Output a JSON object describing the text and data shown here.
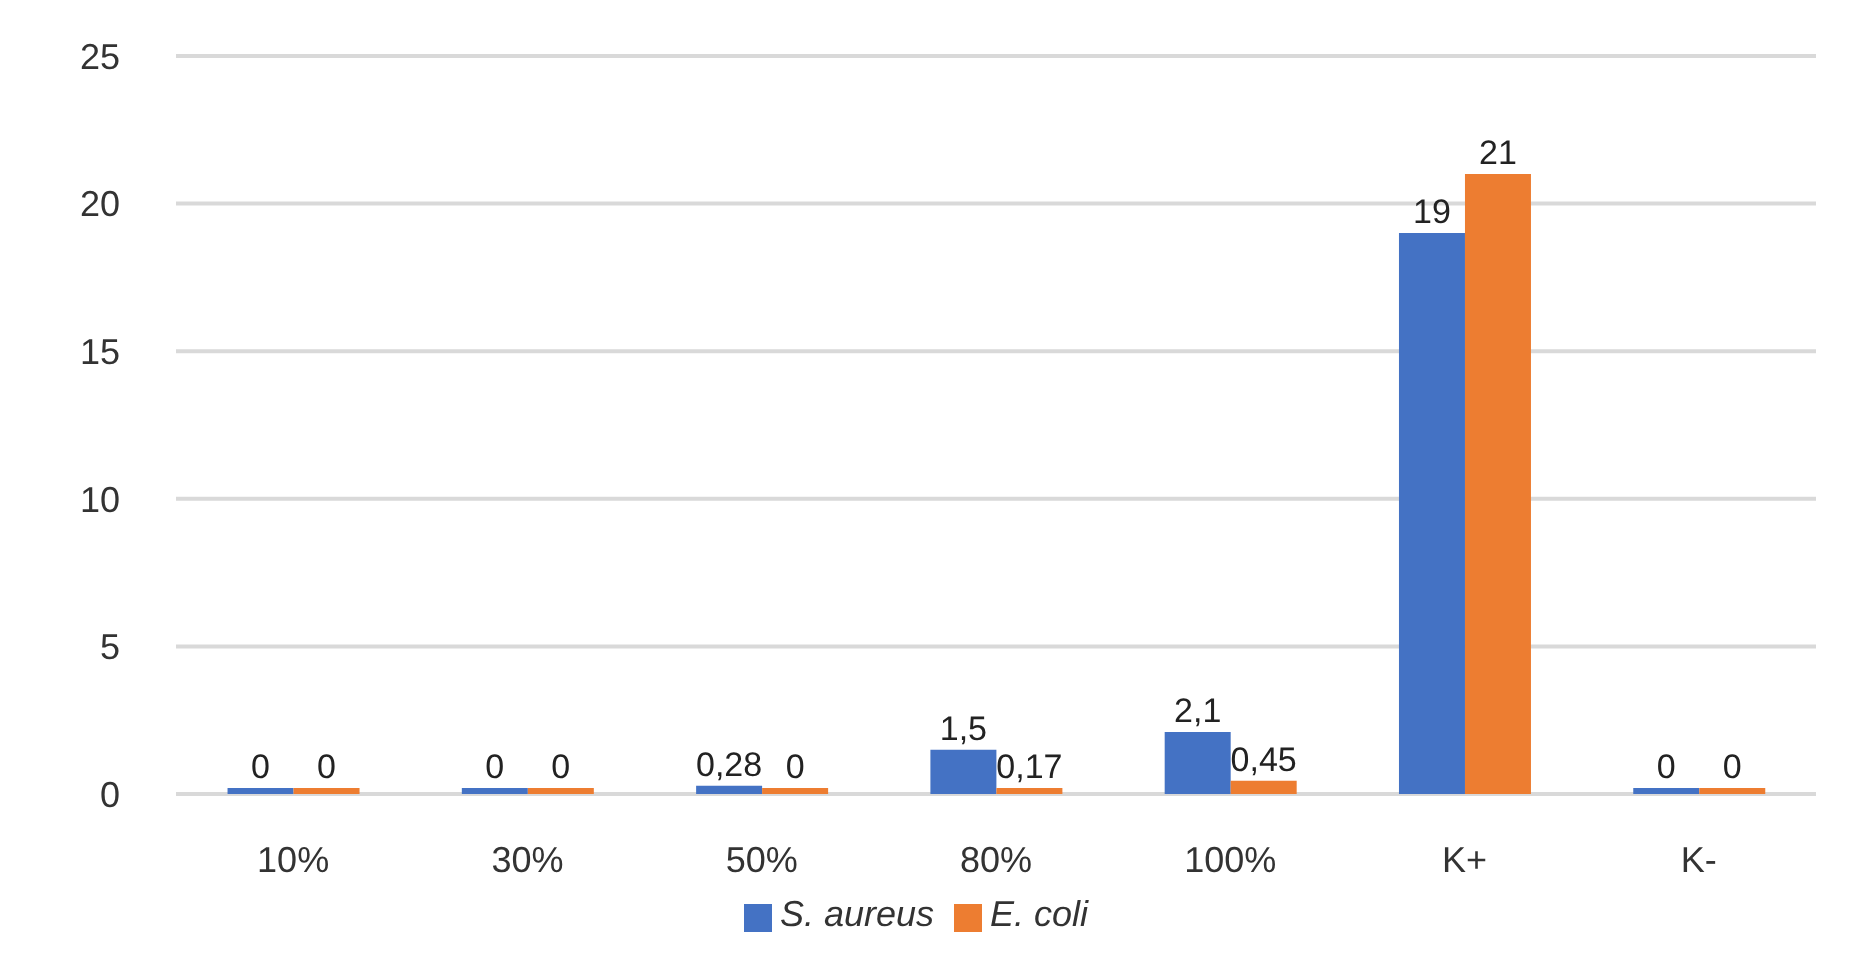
{
  "chart_data": {
    "type": "bar",
    "categories": [
      "10%",
      "30%",
      "50%",
      "80%",
      "100%",
      "K+",
      "K-"
    ],
    "series": [
      {
        "name": "S. aureus",
        "color": "#4472c4",
        "values": [
          0,
          0,
          0.28,
          1.5,
          2.1,
          19,
          0
        ],
        "value_labels": [
          "0",
          "0",
          "0,28",
          "1,5",
          "2,1",
          "19",
          "0"
        ]
      },
      {
        "name": "E. coli",
        "color": "#ed7d31",
        "values": [
          0,
          0,
          0,
          0.17,
          0.45,
          21,
          0
        ],
        "value_labels": [
          "0",
          "0",
          "0",
          "0,17",
          "0,45",
          "21",
          "0"
        ]
      }
    ],
    "ylim": [
      0,
      25
    ],
    "yticks": [
      0,
      5,
      10,
      15,
      20,
      25
    ],
    "grid": "y",
    "legend": "bottom"
  }
}
